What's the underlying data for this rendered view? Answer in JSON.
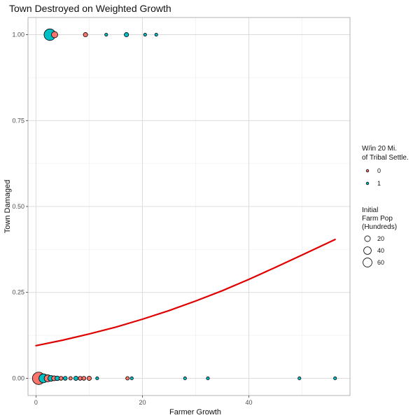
{
  "chart_data": {
    "type": "scatter",
    "title": "Town Destroyed on Weighted Growth",
    "xlabel": "Farmer Growth",
    "ylabel": "Town Damaged",
    "xlim": [
      -1.5,
      59
    ],
    "ylim": [
      -0.05,
      1.05
    ],
    "x_ticks": [
      0,
      20,
      40
    ],
    "y_ticks": [
      0.0,
      0.25,
      0.5,
      0.75,
      1.0
    ],
    "y_tick_labels": [
      "0.00",
      "0.25",
      "0.50",
      "0.75",
      "1.00"
    ],
    "grid": true,
    "colors": {
      "0": "#F8766D",
      "1": "#00BFC4",
      "trend": "#e00000",
      "outline": "#000000"
    },
    "legend_color": {
      "title_lines": [
        "W/in 20 Mi.",
        "of Tribal Settle."
      ],
      "labels": [
        "0",
        "1"
      ]
    },
    "legend_size": {
      "title_lines": [
        "Initial",
        "Farm Pop",
        "(Hundreds)"
      ],
      "labels": [
        "20",
        "40",
        "60"
      ],
      "values": [
        20,
        40,
        60
      ]
    },
    "points": [
      {
        "x": 2.6,
        "y": 1,
        "group": "1",
        "size": 55
      },
      {
        "x": 3.5,
        "y": 1,
        "group": "0",
        "size": 12
      },
      {
        "x": 9.3,
        "y": 1,
        "group": "0",
        "size": 4
      },
      {
        "x": 13.2,
        "y": 1,
        "group": "1",
        "size": 1
      },
      {
        "x": 17.0,
        "y": 1,
        "group": "1",
        "size": 4
      },
      {
        "x": 20.5,
        "y": 1,
        "group": "1",
        "size": 1
      },
      {
        "x": 22.6,
        "y": 1,
        "group": "1",
        "size": 1
      },
      {
        "x": 0.5,
        "y": 0,
        "group": "0",
        "size": 65
      },
      {
        "x": 1.4,
        "y": 0,
        "group": "1",
        "size": 30
      },
      {
        "x": 2.2,
        "y": 0,
        "group": "0",
        "size": 16
      },
      {
        "x": 2.8,
        "y": 0,
        "group": "1",
        "size": 10
      },
      {
        "x": 3.4,
        "y": 0,
        "group": "0",
        "size": 6
      },
      {
        "x": 4.0,
        "y": 0,
        "group": "1",
        "size": 5
      },
      {
        "x": 4.7,
        "y": 0,
        "group": "0",
        "size": 3
      },
      {
        "x": 5.5,
        "y": 0,
        "group": "1",
        "size": 3
      },
      {
        "x": 6.5,
        "y": 0,
        "group": "0",
        "size": 2
      },
      {
        "x": 7.5,
        "y": 0,
        "group": "1",
        "size": 4
      },
      {
        "x": 8.3,
        "y": 0,
        "group": "0",
        "size": 3
      },
      {
        "x": 9.0,
        "y": 0,
        "group": "0",
        "size": 3
      },
      {
        "x": 10.0,
        "y": 0,
        "group": "0",
        "size": 4
      },
      {
        "x": 11.5,
        "y": 0,
        "group": "1",
        "size": 1
      },
      {
        "x": 17.2,
        "y": 0,
        "group": "0",
        "size": 2
      },
      {
        "x": 18.0,
        "y": 0,
        "group": "1",
        "size": 1
      },
      {
        "x": 28.0,
        "y": 0,
        "group": "1",
        "size": 1
      },
      {
        "x": 32.3,
        "y": 0,
        "group": "1",
        "size": 1
      },
      {
        "x": 49.5,
        "y": 0,
        "group": "1",
        "size": 1
      },
      {
        "x": 56.2,
        "y": 0,
        "group": "1",
        "size": 1
      }
    ],
    "trend_line": {
      "x": [
        0,
        5,
        10,
        15,
        20,
        25,
        30,
        35,
        40,
        45,
        50,
        56.2
      ],
      "y": [
        0.095,
        0.111,
        0.129,
        0.149,
        0.172,
        0.197,
        0.225,
        0.255,
        0.288,
        0.323,
        0.359,
        0.404
      ]
    }
  }
}
